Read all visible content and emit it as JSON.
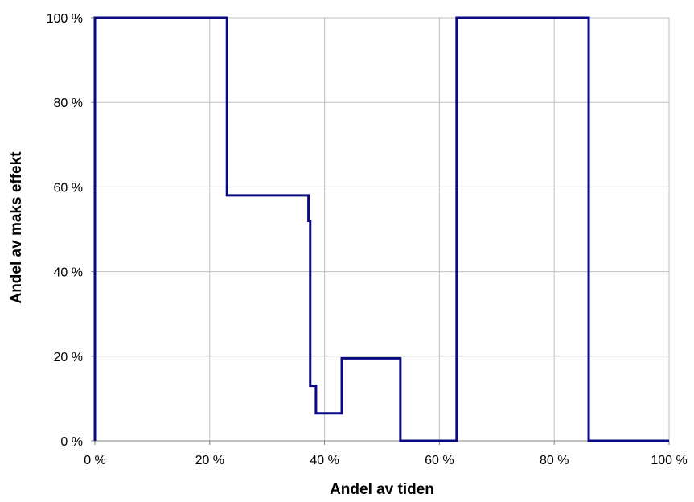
{
  "chart_data": {
    "type": "line",
    "step": true,
    "xlabel": "Andel av tiden",
    "ylabel": "Andel av maks effekt",
    "xlim": [
      0,
      100
    ],
    "ylim": [
      0,
      100
    ],
    "x_ticks": [
      0,
      20,
      40,
      60,
      80,
      100
    ],
    "y_ticks": [
      0,
      20,
      40,
      60,
      80,
      100
    ],
    "x_tick_labels": [
      "0 %",
      "20 %",
      "40 %",
      "60 %",
      "80 %",
      "100 %"
    ],
    "y_tick_labels": [
      "0 %",
      "20 %",
      "40 %",
      "60 %",
      "80 %",
      "100 %"
    ],
    "grid": true,
    "series": [
      {
        "color": "#0a0a80",
        "points": [
          [
            0,
            0
          ],
          [
            0,
            100
          ],
          [
            23,
            100
          ],
          [
            23,
            58
          ],
          [
            37.2,
            58
          ],
          [
            37.2,
            52
          ],
          [
            37.5,
            52
          ],
          [
            37.5,
            13
          ],
          [
            38.5,
            13
          ],
          [
            38.5,
            6.5
          ],
          [
            43,
            6.5
          ],
          [
            43,
            19.5
          ],
          [
            53.2,
            19.5
          ],
          [
            53.2,
            0
          ],
          [
            63,
            0
          ],
          [
            63,
            100
          ],
          [
            86,
            100
          ],
          [
            86,
            0
          ],
          [
            100,
            0
          ]
        ]
      }
    ]
  }
}
